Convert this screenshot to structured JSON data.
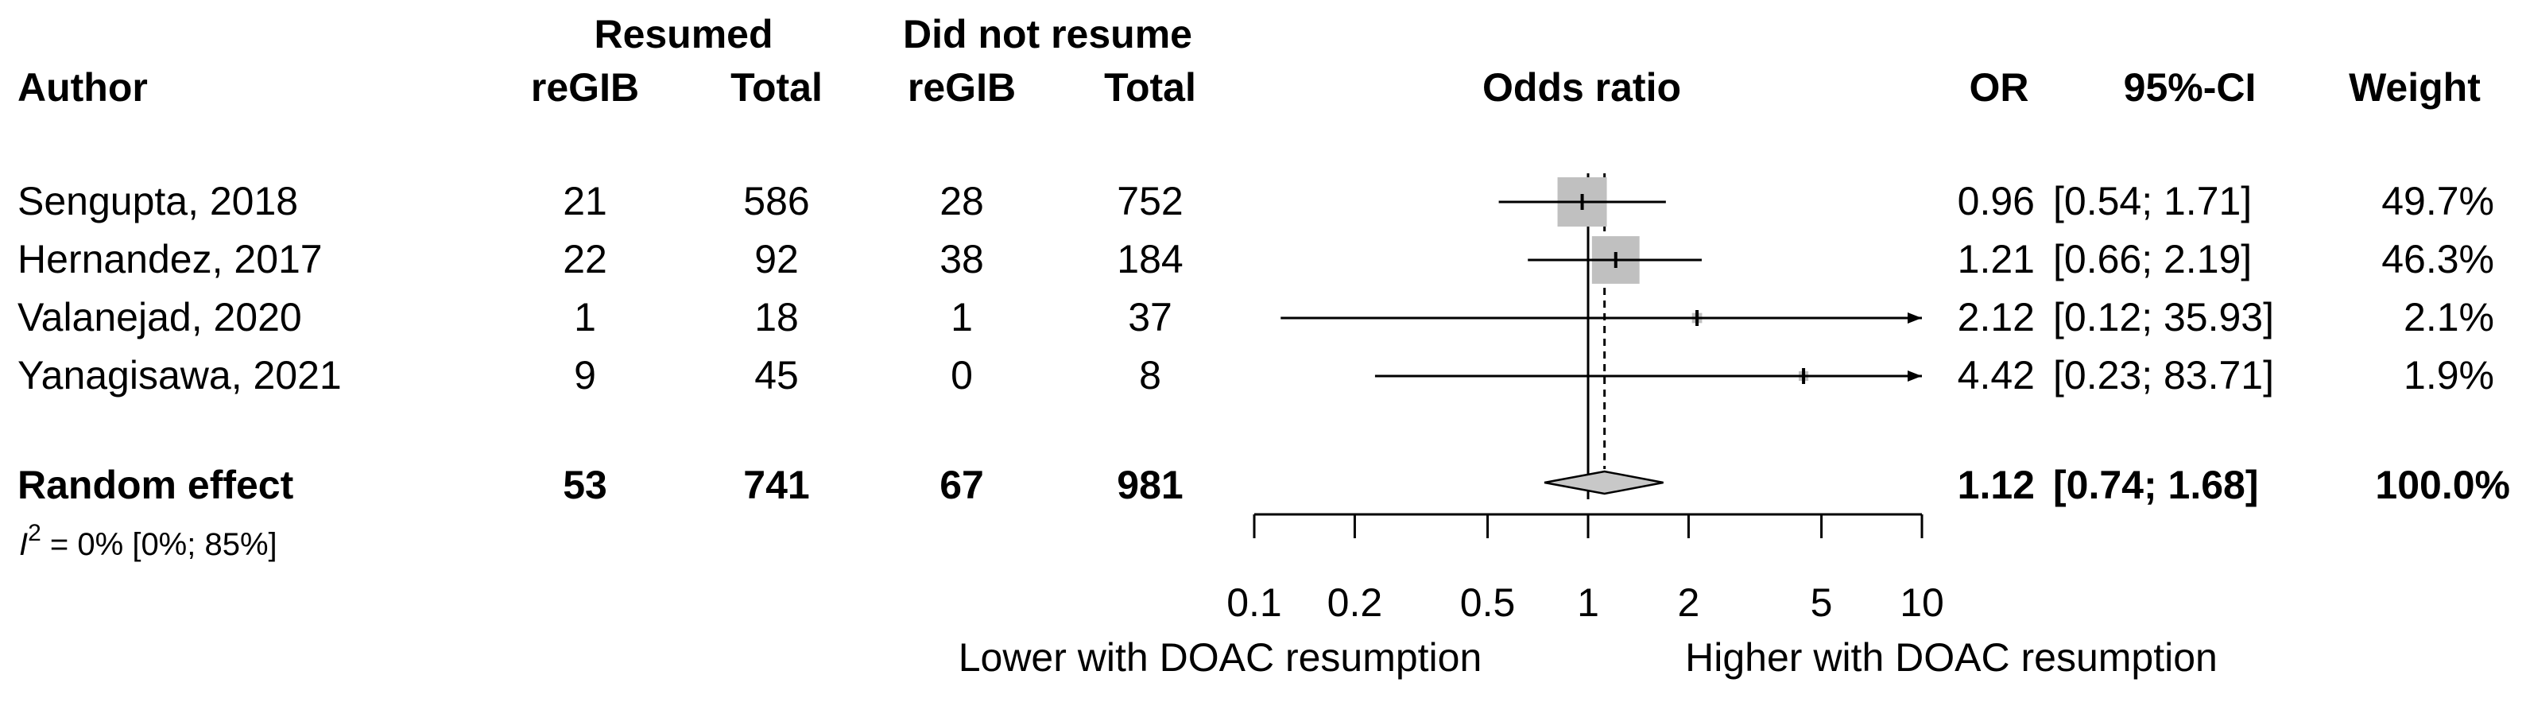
{
  "chart_data": {
    "type": "forest",
    "title": "Odds ratio",
    "group_headers": {
      "resumed": "Resumed",
      "not_resumed": "Did not resume"
    },
    "columns": {
      "author": "Author",
      "resumed_events": "reGIB",
      "resumed_total": "Total",
      "not_events": "reGIB",
      "not_total": "Total",
      "or": "OR",
      "ci": "95%-CI",
      "weight": "Weight"
    },
    "studies": [
      {
        "author": "Sengupta, 2018",
        "r_events": "21",
        "r_total": "586",
        "n_events": "28",
        "n_total": "752",
        "or": 0.96,
        "lo": 0.54,
        "hi": 1.71,
        "or_text": "0.96",
        "ci_text": "[0.54;  1.71]",
        "weight": 49.7,
        "weight_text": "49.7%"
      },
      {
        "author": "Hernandez, 2017",
        "r_events": "22",
        "r_total": "92",
        "n_events": "38",
        "n_total": "184",
        "or": 1.21,
        "lo": 0.66,
        "hi": 2.19,
        "or_text": "1.21",
        "ci_text": "[0.66;  2.19]",
        "weight": 46.3,
        "weight_text": "46.3%"
      },
      {
        "author": "Valanejad, 2020",
        "r_events": "1",
        "r_total": "18",
        "n_events": "1",
        "n_total": "37",
        "or": 2.12,
        "lo": 0.12,
        "hi": 35.93,
        "or_text": "2.12",
        "ci_text": "[0.12; 35.93]",
        "weight": 2.1,
        "weight_text": "2.1%"
      },
      {
        "author": "Yanagisawa, 2021",
        "r_events": "9",
        "r_total": "45",
        "n_events": "0",
        "n_total": "8",
        "or": 4.42,
        "lo": 0.23,
        "hi": 83.71,
        "or_text": "4.42",
        "ci_text": "[0.23; 83.71]",
        "weight": 1.9,
        "weight_text": "1.9%"
      }
    ],
    "pooled": {
      "label": "Random effect",
      "r_events": "53",
      "r_total": "741",
      "n_events": "67",
      "n_total": "981",
      "or": 1.12,
      "lo": 0.74,
      "hi": 1.68,
      "or_text": "1.12",
      "ci_text": "[0.74;  1.68]",
      "weight_text": "100.0%"
    },
    "heterogeneity": {
      "symbol": "I",
      "sup": "2",
      "text": " = 0% [0%; 85%]"
    },
    "x_axis": {
      "scale": "log",
      "xlim": [
        0.1,
        10
      ],
      "ticks": [
        0.1,
        0.2,
        0.5,
        1,
        2,
        5,
        10
      ],
      "tick_labels": [
        "0.1",
        "0.2",
        "0.5",
        "1",
        "2",
        "5",
        "10"
      ],
      "label_left": "Lower with DOAC resumption",
      "label_right": "Higher with DOAC resumption"
    },
    "colors": {
      "box": "#c0c0c0",
      "line": "#000000",
      "diamond": "#c8c8c8"
    }
  }
}
